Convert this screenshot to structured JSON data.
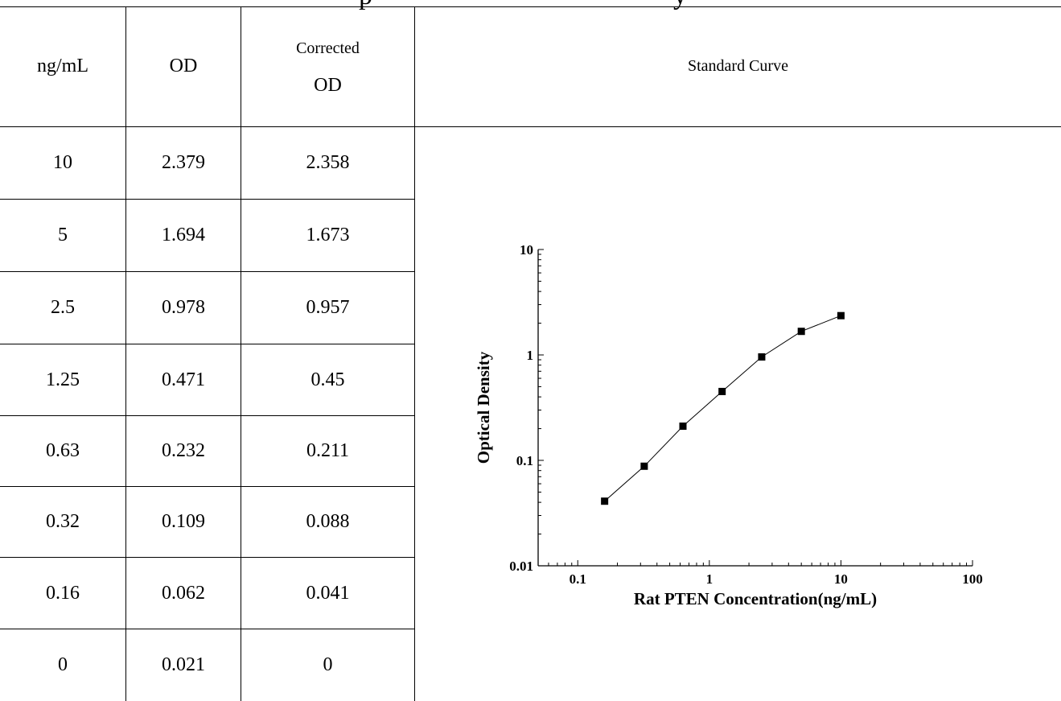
{
  "table": {
    "headers": {
      "conc": "ng/mL",
      "od": "OD",
      "corrected_line1": "Corrected",
      "corrected_line2": "OD",
      "curve": "Standard Curve"
    },
    "rows": [
      {
        "conc": "10",
        "od": "2.379",
        "corrected": "2.358"
      },
      {
        "conc": "5",
        "od": "1.694",
        "corrected": "1.673"
      },
      {
        "conc": "2.5",
        "od": "0.978",
        "corrected": "0.957"
      },
      {
        "conc": "1.25",
        "od": "0.471",
        "corrected": "0.45"
      },
      {
        "conc": "0.63",
        "od": "0.232",
        "corrected": "0.211"
      },
      {
        "conc": "0.32",
        "od": "0.109",
        "corrected": "0.088"
      },
      {
        "conc": "0.16",
        "od": "0.062",
        "corrected": "0.041"
      },
      {
        "conc": "0",
        "od": "0.021",
        "corrected": "0"
      }
    ]
  },
  "chart_data": {
    "type": "scatter",
    "title": "",
    "xlabel": "Rat PTEN Concentration(ng/mL)",
    "ylabel": "Optical Density",
    "x_scale": "log",
    "y_scale": "log",
    "xlim": [
      0.05,
      100
    ],
    "ylim": [
      0.01,
      10
    ],
    "x_ticks": [
      {
        "value": 0.1,
        "label": "0.1"
      },
      {
        "value": 1,
        "label": "1"
      },
      {
        "value": 10,
        "label": "10"
      },
      {
        "value": 100,
        "label": "100"
      }
    ],
    "y_ticks": [
      {
        "value": 0.01,
        "label": "0.01"
      },
      {
        "value": 0.1,
        "label": "0.1"
      },
      {
        "value": 1,
        "label": "1"
      },
      {
        "value": 10,
        "label": "10"
      }
    ],
    "grid": false,
    "connect_points": true,
    "series": [
      {
        "x": [
          0.16,
          0.32,
          0.63,
          1.25,
          2.5,
          5,
          10
        ],
        "y": [
          0.041,
          0.088,
          0.211,
          0.45,
          0.957,
          1.673,
          2.358
        ]
      }
    ],
    "marker_color": "#000000",
    "line_color": "#000000"
  }
}
